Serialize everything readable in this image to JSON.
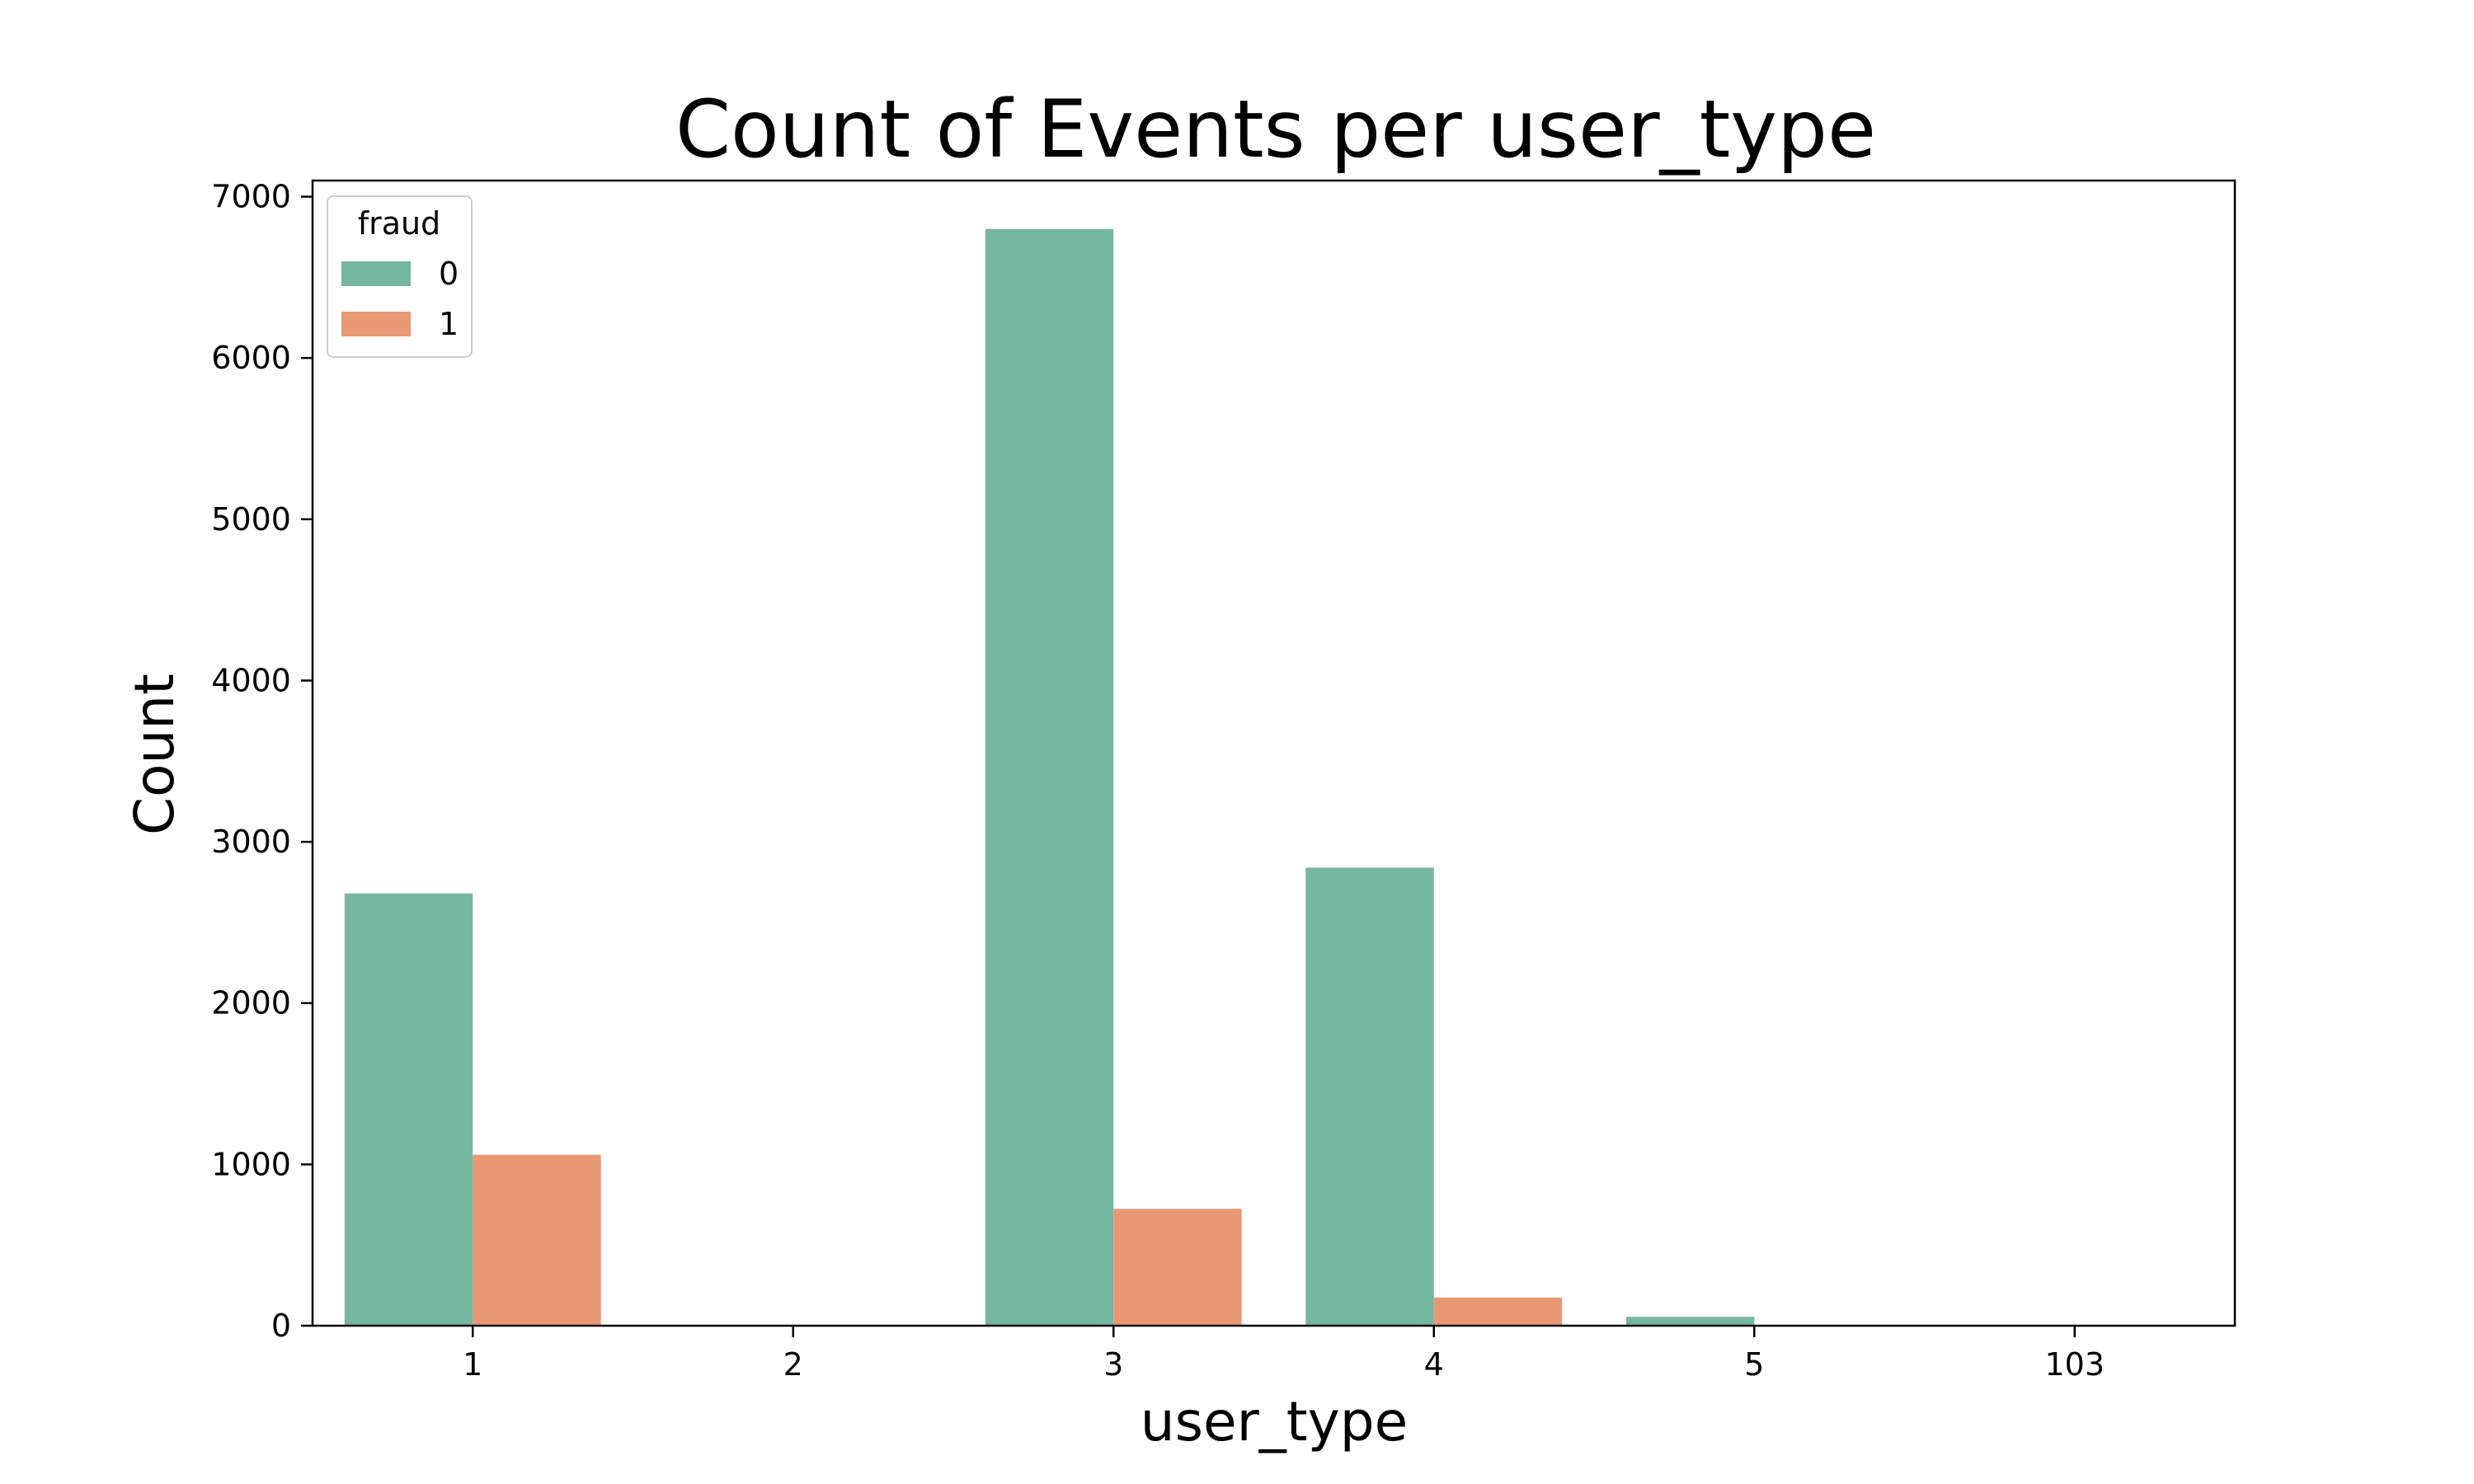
{
  "chart_data": {
    "type": "bar",
    "title": "Count of Events per user_type",
    "xlabel": "user_type",
    "ylabel": "Count",
    "categories": [
      "1",
      "2",
      "3",
      "4",
      "5",
      "103"
    ],
    "ylim": [
      0,
      7100
    ],
    "yticks": [
      0,
      1000,
      2000,
      3000,
      4000,
      5000,
      6000,
      7000
    ],
    "grid": false,
    "legend": {
      "title": "fraud",
      "placement": "top-left"
    },
    "series": [
      {
        "name": "0",
        "color": "#75b6a0",
        "values": [
          2680,
          0,
          6800,
          2840,
          55,
          0
        ]
      },
      {
        "name": "1",
        "color": "#e99875",
        "values": [
          1060,
          0,
          725,
          175,
          0,
          0
        ]
      }
    ]
  }
}
